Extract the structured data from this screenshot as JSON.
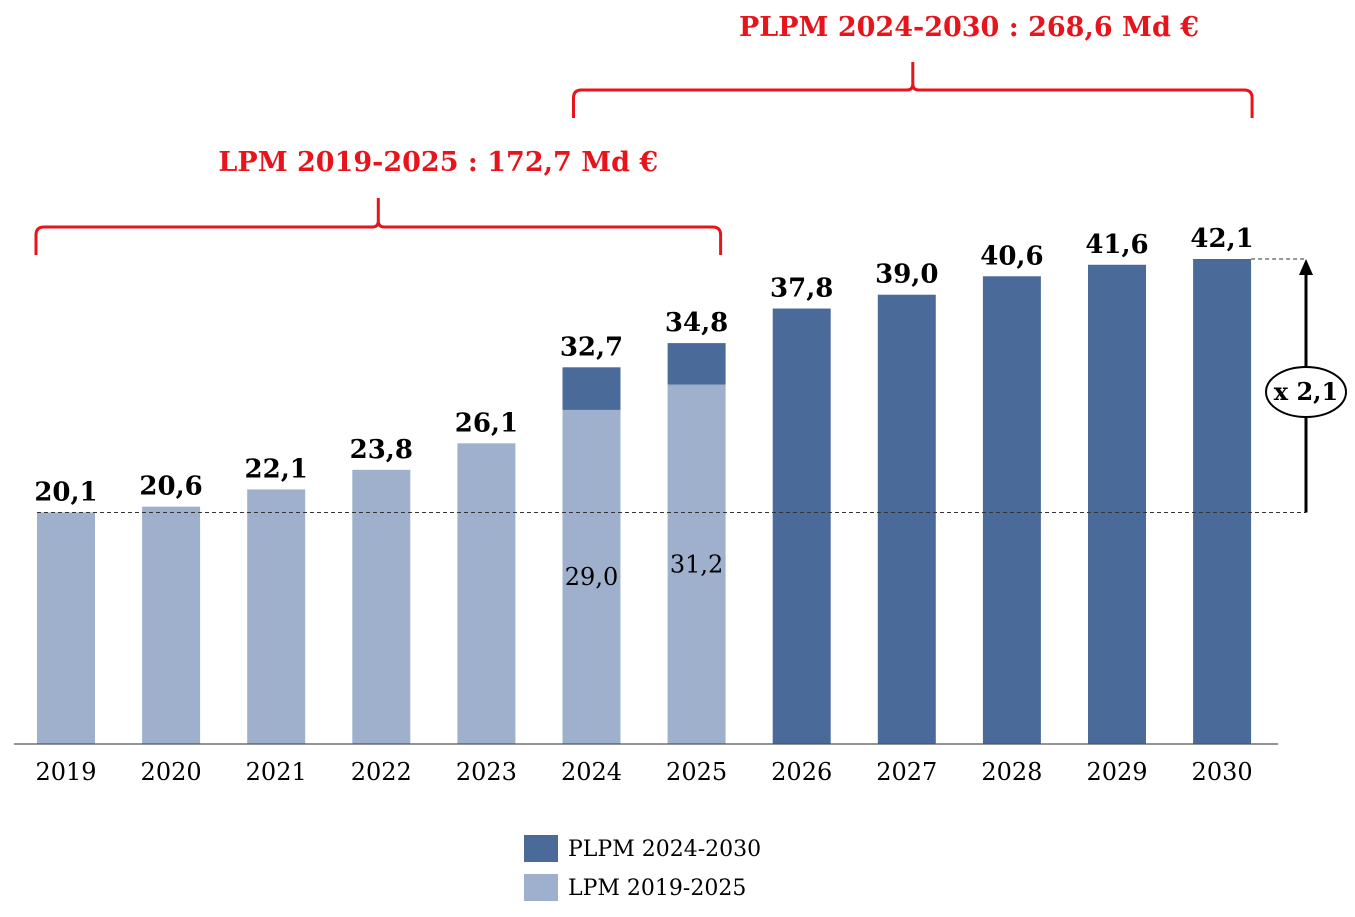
{
  "chart_data": {
    "type": "bar",
    "stacked": true,
    "categories": [
      "2019",
      "2020",
      "2021",
      "2022",
      "2023",
      "2024",
      "2025",
      "2026",
      "2027",
      "2028",
      "2029",
      "2030"
    ],
    "series": [
      {
        "name": "LPM 2019-2025",
        "color": "#9eb0cc",
        "values": [
          20.1,
          20.6,
          22.1,
          23.8,
          26.1,
          29.0,
          31.2,
          0,
          0,
          0,
          0,
          0
        ]
      },
      {
        "name": "PLPM 2024-2030",
        "color": "#4a6a9a",
        "values": [
          0,
          0,
          0,
          0,
          0,
          3.7,
          3.6,
          37.8,
          39.0,
          40.6,
          41.6,
          42.1
        ]
      }
    ],
    "total_labels": [
      "20,1",
      "20,6",
      "22,1",
      "23,8",
      "26,1",
      "32,7",
      "34,8",
      "37,8",
      "39,0",
      "40,6",
      "41,6",
      "42,1"
    ],
    "inner_labels": [
      "",
      "",
      "",
      "",
      "",
      "29,0",
      "31,2",
      "",
      "",
      "",
      "",
      ""
    ],
    "ylim": [
      0,
      45
    ],
    "grid": false,
    "legend_position": "bottom-center",
    "legend": [
      {
        "label": "PLPM 2024-2030",
        "color": "#4a6a9a"
      },
      {
        "label": "LPM 2019-2025",
        "color": "#9eb0cc"
      }
    ],
    "annotations": {
      "lpm_bracket": {
        "text": "LPM 2019-2025 : 172,7 Md €",
        "from": "2019",
        "to": "2025",
        "color": "#e8141c"
      },
      "plpm_bracket": {
        "text": "PLPM 2024-2030 : 268,6 Md €",
        "from": "2024",
        "to": "2030",
        "color": "#e8141c"
      },
      "growth": {
        "text": "x 2,1",
        "from_value": 20.1,
        "to_value": 42.1
      }
    }
  }
}
